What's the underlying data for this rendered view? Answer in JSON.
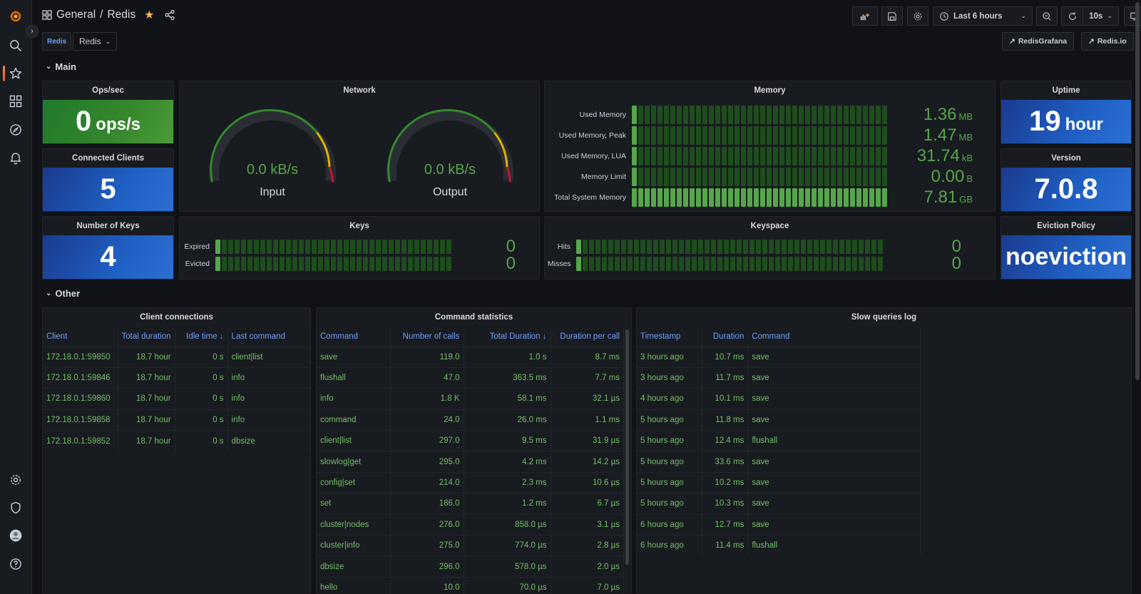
{
  "header": {
    "folder": "General",
    "separator": "/",
    "dashboard": "Redis",
    "time_range": "Last 6 hours",
    "refresh": "10s"
  },
  "variables": {
    "label": "Redis",
    "value": "Redis"
  },
  "links": [
    {
      "label": "RedisGrafana"
    },
    {
      "label": "Redis.io"
    }
  ],
  "rows": {
    "main": "Main",
    "other": "Other"
  },
  "panels": {
    "ops": {
      "title": "Ops/sec",
      "value": "0",
      "unit": "ops/s"
    },
    "clients": {
      "title": "Connected Clients",
      "value": "5"
    },
    "keys_count": {
      "title": "Number of Keys",
      "value": "4"
    },
    "network": {
      "title": "Network",
      "gauges": [
        {
          "value": "0.0 kB/s",
          "label": "Input"
        },
        {
          "value": "0.0 kB/s",
          "label": "Output"
        }
      ]
    },
    "memory": {
      "title": "Memory",
      "rows": [
        {
          "label": "Used Memory",
          "value": "1.36",
          "unit": "MB",
          "fill": 0.03
        },
        {
          "label": "Used Memory, Peak",
          "value": "1.47",
          "unit": "MB",
          "fill": 0.03
        },
        {
          "label": "Used Memory, LUA",
          "value": "31.74",
          "unit": "kB",
          "fill": 0.03
        },
        {
          "label": "Memory Limit",
          "value": "0.00",
          "unit": "B",
          "fill": 0.0
        },
        {
          "label": "Total System Memory",
          "value": "7.81",
          "unit": "GB",
          "fill": 1.0
        }
      ]
    },
    "uptime": {
      "title": "Uptime",
      "value": "19",
      "unit": "hour"
    },
    "version": {
      "title": "Version",
      "value": "7.0.8"
    },
    "eviction": {
      "title": "Eviction Policy",
      "value": "noeviction"
    },
    "keys": {
      "title": "Keys",
      "rows": [
        {
          "label": "Expired",
          "value": "0"
        },
        {
          "label": "Evicted",
          "value": "0"
        }
      ]
    },
    "keyspace": {
      "title": "Keyspace",
      "rows": [
        {
          "label": "Hits",
          "value": "0"
        },
        {
          "label": "Misses",
          "value": "0"
        }
      ]
    },
    "client_connections": {
      "title": "Client connections",
      "columns": [
        "Client",
        "Total duration",
        "Idle time ↓",
        "Last command"
      ],
      "rows": [
        [
          "172.18.0.1:59850",
          "18.7 hour",
          "0 s",
          "client|list"
        ],
        [
          "172.18.0.1:59846",
          "18.7 hour",
          "0 s",
          "info"
        ],
        [
          "172.18.0.1:59860",
          "18.7 hour",
          "0 s",
          "info"
        ],
        [
          "172.18.0.1:59858",
          "18.7 hour",
          "0 s",
          "info"
        ],
        [
          "172.18.0.1:59852",
          "18.7 hour",
          "0 s",
          "dbsize"
        ]
      ]
    },
    "command_stats": {
      "title": "Command statistics",
      "columns": [
        "Command",
        "Number of calls",
        "Total Duration ↓",
        "Duration per call"
      ],
      "rows": [
        [
          "save",
          "119.0",
          "1.0 s",
          "8.7 ms"
        ],
        [
          "flushall",
          "47.0",
          "363.5 ms",
          "7.7 ms"
        ],
        [
          "info",
          "1.8 K",
          "58.1 ms",
          "32.1 µs"
        ],
        [
          "command",
          "24.0",
          "26.0 ms",
          "1.1 ms"
        ],
        [
          "client|list",
          "297.0",
          "9.5 ms",
          "31.9 µs"
        ],
        [
          "slowlog|get",
          "295.0",
          "4.2 ms",
          "14.2 µs"
        ],
        [
          "config|set",
          "214.0",
          "2.3 ms",
          "10.6 µs"
        ],
        [
          "set",
          "186.0",
          "1.2 ms",
          "6.7 µs"
        ],
        [
          "cluster|nodes",
          "276.0",
          "858.0 µs",
          "3.1 µs"
        ],
        [
          "cluster|info",
          "275.0",
          "774.0 µs",
          "2.8 µs"
        ],
        [
          "dbsize",
          "296.0",
          "578.0 µs",
          "2.0 µs"
        ],
        [
          "hello",
          "10.0",
          "70.0 µs",
          "7.0 µs"
        ]
      ]
    },
    "slow_queries": {
      "title": "Slow queries log",
      "columns": [
        "Timestamp",
        "Duration",
        "Command"
      ],
      "rows": [
        [
          "3 hours ago",
          "10.7 ms",
          "save"
        ],
        [
          "3 hours ago",
          "11.7 ms",
          "save"
        ],
        [
          "4 hours ago",
          "10.1 ms",
          "save"
        ],
        [
          "5 hours ago",
          "11.8 ms",
          "save"
        ],
        [
          "5 hours ago",
          "12.4 ms",
          "flushall"
        ],
        [
          "5 hours ago",
          "33.6 ms",
          "save"
        ],
        [
          "5 hours ago",
          "10.2 ms",
          "save"
        ],
        [
          "5 hours ago",
          "10.3 ms",
          "save"
        ],
        [
          "6 hours ago",
          "12.7 ms",
          "save"
        ],
        [
          "6 hours ago",
          "11.4 ms",
          "flushall"
        ]
      ]
    }
  },
  "colors": {
    "accent_green": "#56a64b",
    "link_blue": "#6e9fff",
    "stat_blue": "#1f60c4",
    "stat_green": "#37872d",
    "grafana_orange": "#f05a28"
  }
}
